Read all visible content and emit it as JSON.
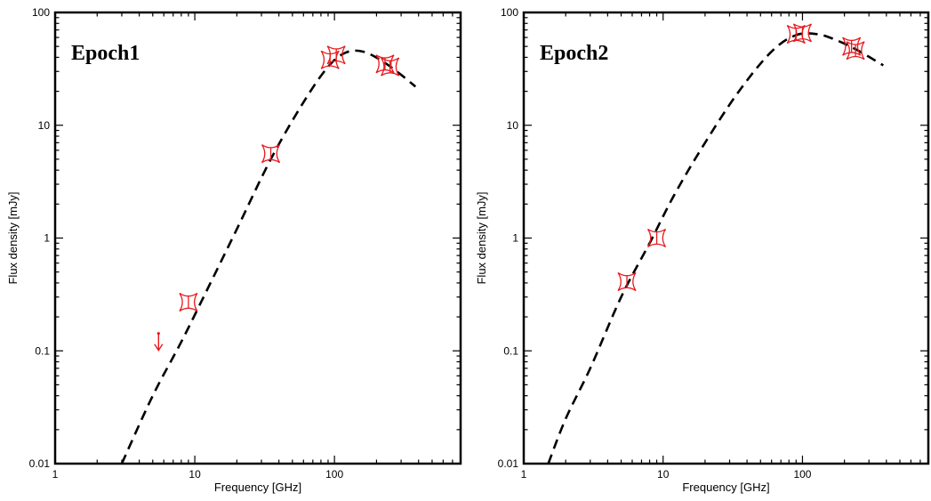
{
  "chart_data": [
    {
      "type": "scatter",
      "title": "Epoch1",
      "xlabel": "Frequency [GHz]",
      "ylabel": "Flux density [mJy]",
      "x_scale": "log",
      "y_scale": "log",
      "xlim": [
        1,
        800
      ],
      "ylim": [
        0.01,
        100
      ],
      "x_ticks": [
        "1",
        "10",
        "100"
      ],
      "y_ticks": [
        "0.01",
        "0.1",
        "1",
        "10",
        "100"
      ],
      "grid": false,
      "marker_color": "#e8191d",
      "model_color": "#000000",
      "points": [
        {
          "x": 9.0,
          "y": 0.27
        },
        {
          "x": 35.0,
          "y": 5.6
        },
        {
          "x": 93.0,
          "y": 38
        },
        {
          "x": 103.0,
          "y": 42
        },
        {
          "x": 230.0,
          "y": 35
        },
        {
          "x": 250.0,
          "y": 33
        }
      ],
      "upper_limits": [
        {
          "x": 5.5,
          "y": 0.14
        }
      ],
      "model": {
        "style": "dashed",
        "x": [
          3,
          5,
          8,
          12,
          20,
          35,
          60,
          90,
          120,
          160,
          220,
          300,
          380
        ],
        "y": [
          0.01,
          0.04,
          0.12,
          0.33,
          1.2,
          5.0,
          16,
          33,
          44,
          45,
          37,
          28,
          22
        ]
      }
    },
    {
      "type": "scatter",
      "title": "Epoch2",
      "xlabel": "Frequency [GHz]",
      "ylabel": "Flux density [mJy]",
      "x_scale": "log",
      "y_scale": "log",
      "xlim": [
        1,
        800
      ],
      "ylim": [
        0.01,
        100
      ],
      "x_ticks": [
        "1",
        "10",
        "100"
      ],
      "y_ticks": [
        "0.01",
        "0.1",
        "1",
        "10",
        "100"
      ],
      "grid": false,
      "marker_color": "#e8191d",
      "model_color": "#000000",
      "points": [
        {
          "x": 5.5,
          "y": 0.41
        },
        {
          "x": 9.0,
          "y": 1.0
        },
        {
          "x": 90.0,
          "y": 64
        },
        {
          "x": 100.0,
          "y": 66
        },
        {
          "x": 225.0,
          "y": 50
        },
        {
          "x": 240.0,
          "y": 46
        }
      ],
      "upper_limits": [],
      "model": {
        "style": "dashed",
        "x": [
          1.5,
          2,
          3,
          5,
          8,
          12,
          20,
          35,
          60,
          90,
          130,
          180,
          250,
          380
        ],
        "y": [
          0.01,
          0.025,
          0.07,
          0.3,
          0.9,
          2.4,
          7,
          20,
          45,
          63,
          64,
          56,
          46,
          34
        ]
      }
    }
  ]
}
